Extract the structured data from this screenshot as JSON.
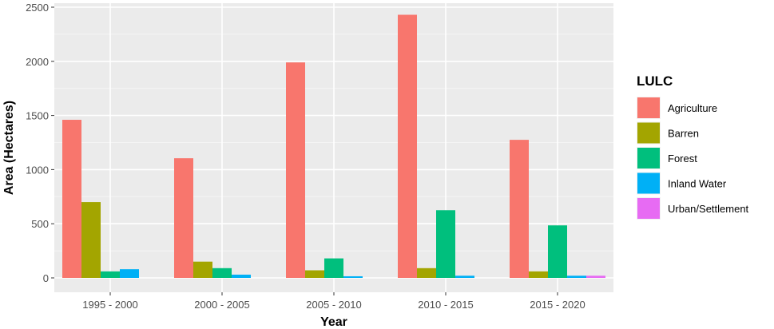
{
  "chart_data": {
    "type": "bar",
    "xlabel": "Year",
    "ylabel": "Area (Hectares)",
    "ylim": [
      0,
      2500
    ],
    "yticks": [
      0,
      500,
      1000,
      1500,
      2000,
      2500
    ],
    "grid": true,
    "legend_position": "right",
    "legend_title": "LULC",
    "categories": [
      "1995 - 2000",
      "2000 - 2005",
      "2005 - 2010",
      "2010 - 2015",
      "2015 - 2020"
    ],
    "series": [
      {
        "name": "Agriculture",
        "color": "#F8766D",
        "values": [
          1460,
          1105,
          1990,
          2430,
          1275
        ]
      },
      {
        "name": "Barren",
        "color": "#A3A500",
        "values": [
          700,
          150,
          70,
          90,
          60
        ]
      },
      {
        "name": "Forest",
        "color": "#00BF7D",
        "values": [
          60,
          90,
          180,
          625,
          485
        ]
      },
      {
        "name": "Inland Water",
        "color": "#00B0F6",
        "values": [
          80,
          30,
          15,
          20,
          20
        ]
      },
      {
        "name": "Urban/Settlement",
        "color": "#E76BF3",
        "values": [
          0,
          0,
          0,
          0,
          20
        ]
      }
    ]
  }
}
